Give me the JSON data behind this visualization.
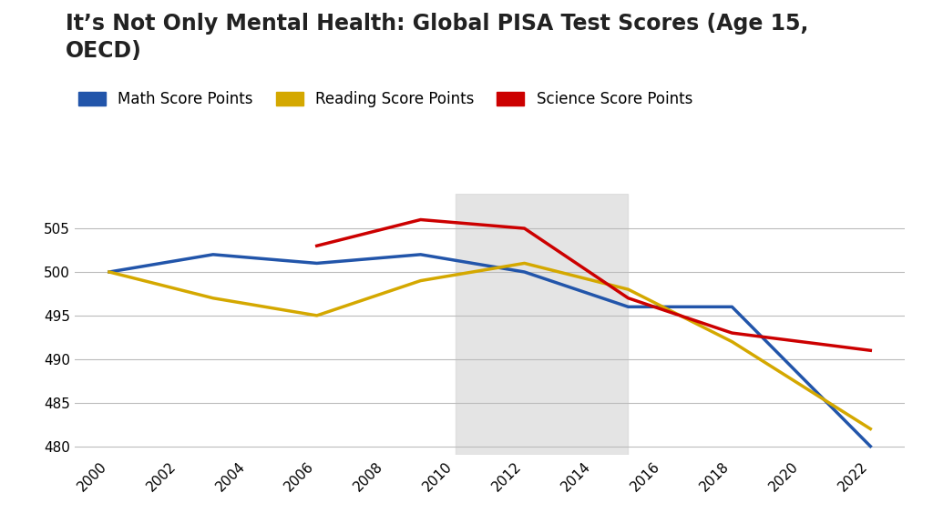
{
  "title": "It’s Not Only Mental Health: Global PISA Test Scores (Age 15,\nOECD)",
  "years": [
    2000,
    2003,
    2006,
    2009,
    2012,
    2015,
    2018,
    2022
  ],
  "math": [
    500,
    502,
    501,
    502,
    500,
    496,
    496,
    480
  ],
  "reading": [
    500,
    497,
    495,
    499,
    501,
    498,
    492,
    482
  ],
  "science": [
    null,
    null,
    503,
    506,
    505,
    497,
    493,
    491
  ],
  "math_color": "#2255aa",
  "reading_color": "#d4a800",
  "science_color": "#cc0000",
  "background_color": "#ffffff",
  "shade_xmin": 2010,
  "shade_xmax": 2015,
  "ylim_min": 479,
  "ylim_max": 509,
  "yticks": [
    480,
    485,
    490,
    495,
    500,
    505
  ],
  "xticks": [
    2000,
    2002,
    2004,
    2006,
    2008,
    2010,
    2012,
    2014,
    2016,
    2018,
    2020,
    2022
  ],
  "legend_math": "Math Score Points",
  "legend_reading": "Reading Score Points",
  "legend_science": "Science Score Points",
  "linewidth": 2.5,
  "title_fontsize": 17,
  "legend_fontsize": 12,
  "tick_fontsize": 11
}
